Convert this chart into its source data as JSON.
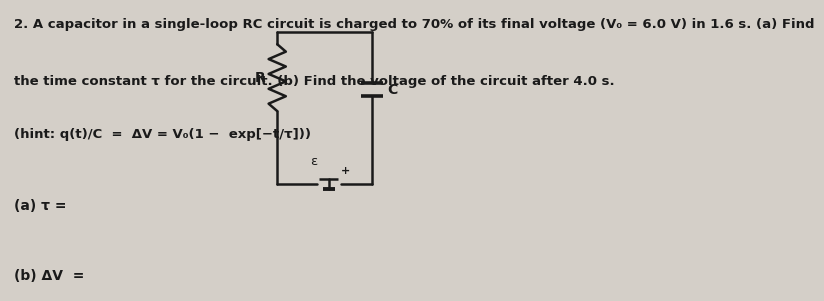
{
  "background_color": "#d4cfc8",
  "line1": "2. A capacitor in a single-loop RC circuit is charged to 70% of its final voltage (V₀ = 6.0 V) in 1.6 s. (a) Find",
  "line2": "the time constant τ for the circuit. (b) Find the voltage of the circuit after 4.0 s.",
  "line3": "(hint: q(t)/C  =  ΔV = V₀(1 −  exp[−t/τ]))",
  "part_a_text": "(a) τ =",
  "part_b_text": "(b) ΔV  =",
  "text_color": "#1a1a1a",
  "font_size_main": 9.5,
  "font_size_parts": 10.0,
  "circuit_L": 0.62,
  "circuit_R": 0.84,
  "circuit_T": 0.92,
  "circuit_B": 0.38
}
